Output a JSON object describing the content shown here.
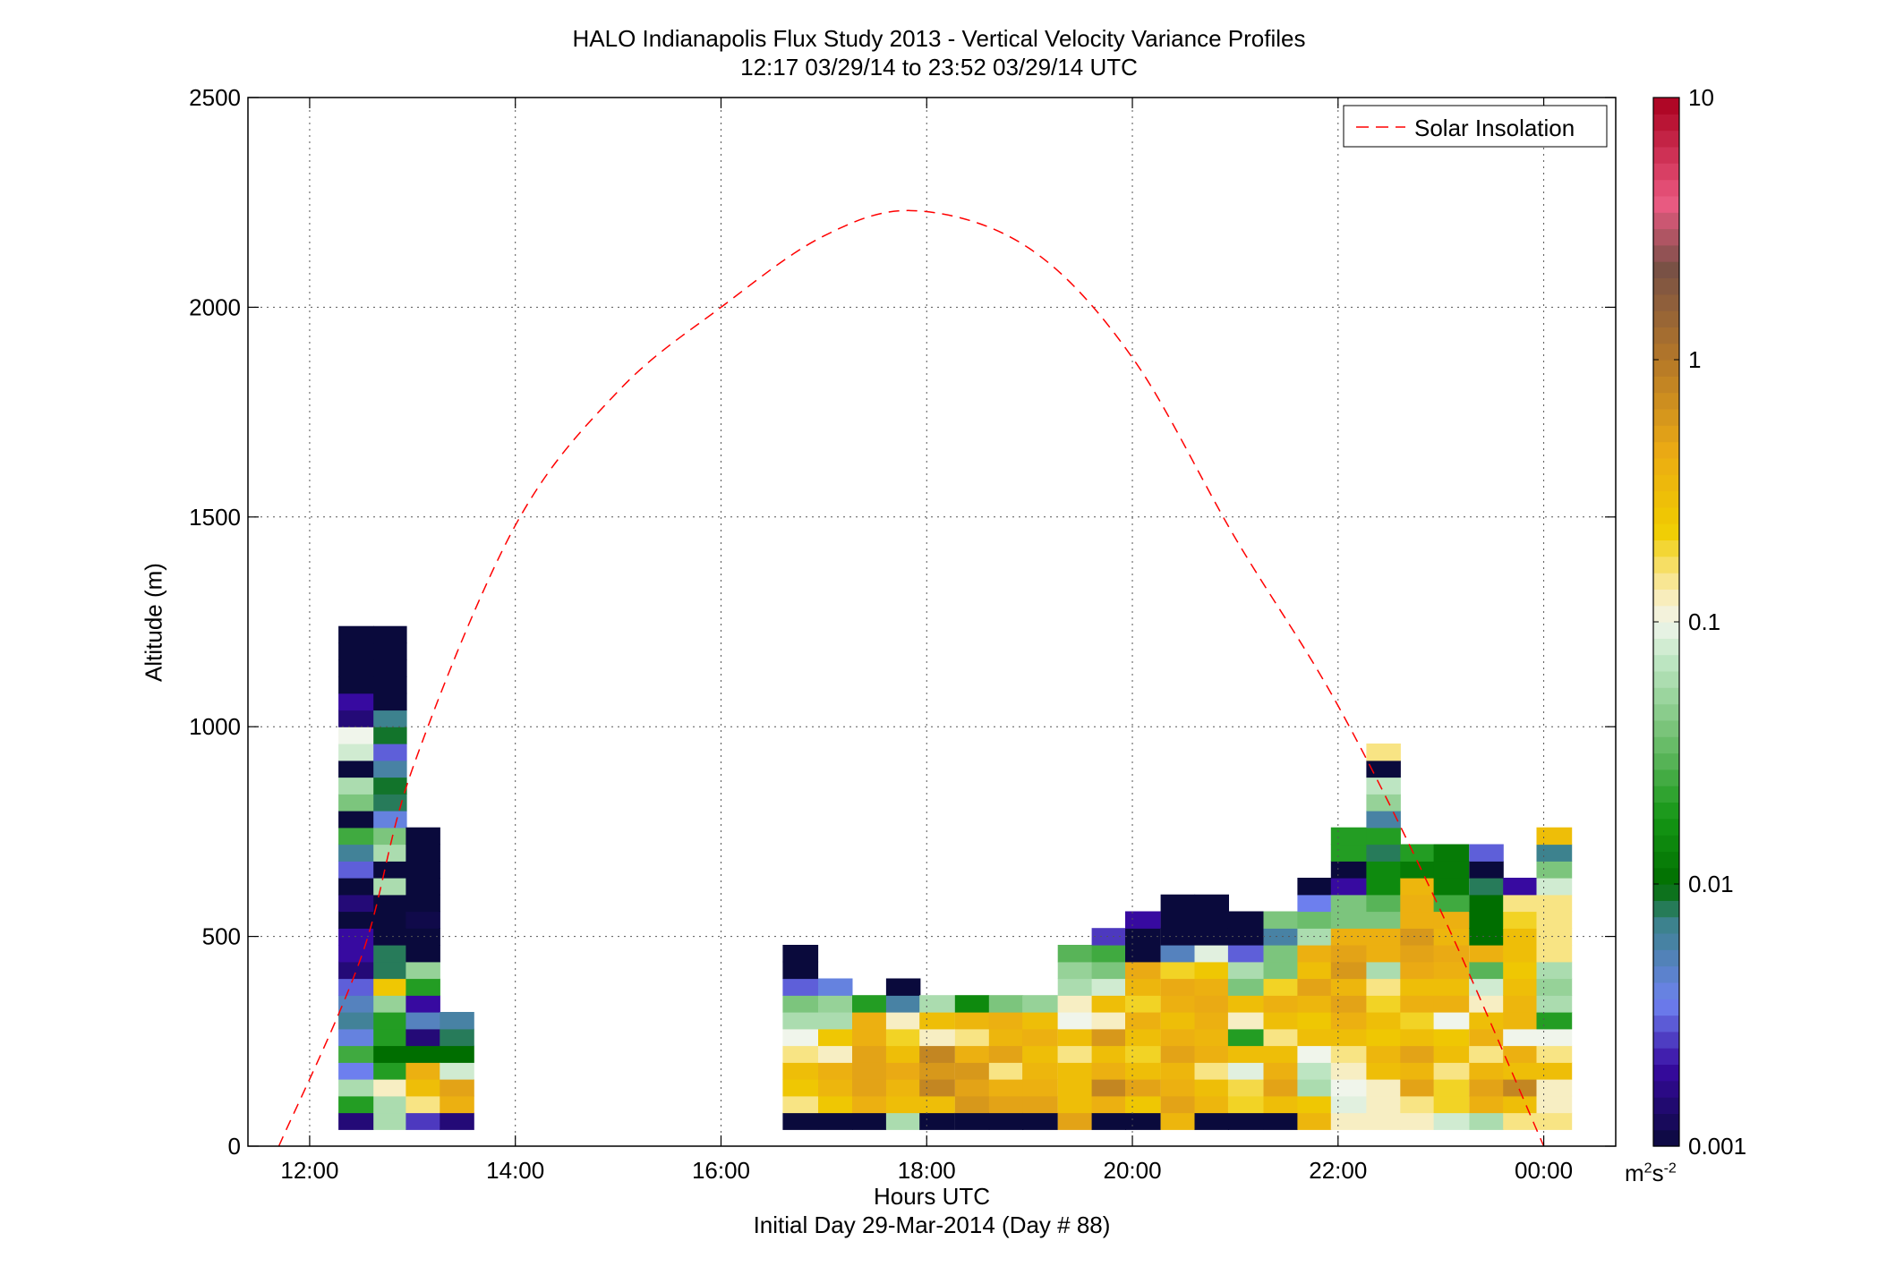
{
  "title_line1": "HALO Indianapolis Flux Study 2013 - Vertical Velocity Variance Profiles",
  "title_line2": "12:17 03/29/14 to 23:52 03/29/14  UTC",
  "xlabel": "Hours UTC",
  "xlabel2": "Initial Day 29-Mar-2014 (Day # 88)",
  "ylabel": "Altitude (m)",
  "colorbar_unit_base": "m",
  "colorbar_unit_mid": "2",
  "colorbar_unit_s": "s",
  "colorbar_unit_exp": "-2",
  "chart_data": {
    "type": "heatmap",
    "title": "HALO Indianapolis Flux Study 2013 - Vertical Velocity Variance Profiles",
    "subtitle": "12:17 03/29/14 to 23:52 03/29/14  UTC",
    "xlabel": "Hours UTC",
    "ylabel": "Altitude (m)",
    "xlim": [
      11.4,
      24.7
    ],
    "ylim": [
      0,
      2500
    ],
    "x_ticks": [
      {
        "value": 12,
        "label": "12:00"
      },
      {
        "value": 14,
        "label": "14:00"
      },
      {
        "value": 16,
        "label": "16:00"
      },
      {
        "value": 18,
        "label": "18:00"
      },
      {
        "value": 20,
        "label": "20:00"
      },
      {
        "value": 22,
        "label": "22:00"
      },
      {
        "value": 24,
        "label": "00:00"
      }
    ],
    "y_ticks": [
      0,
      500,
      1000,
      1500,
      2000,
      2500
    ],
    "grid": true,
    "legend_position": "top-right",
    "colorbar": {
      "scale": "log",
      "range": [
        0.001,
        10
      ],
      "tick_values": [
        0.001,
        0.01,
        0.1,
        1,
        10
      ],
      "tick_labels": [
        "0.001",
        "0.01",
        "0.1",
        "1",
        "10"
      ],
      "unit": "m^2 s^-2"
    },
    "line_series": {
      "name": "Solar Insolation",
      "color": "#ff0000",
      "style": "dashed",
      "x": [
        11.7,
        12.5,
        13.0,
        14.0,
        15.0,
        16.0,
        17.0,
        17.9,
        19.0,
        20.0,
        21.0,
        22.0,
        23.0,
        24.0
      ],
      "y": [
        0,
        450,
        900,
        1480,
        1800,
        2000,
        2170,
        2230,
        2140,
        1880,
        1450,
        1050,
        560,
        0
      ]
    },
    "cell_dz": 40,
    "cells": [
      {
        "x": 12.45,
        "w": 0.34,
        "z": [
          0.0015,
          0.02,
          0.06,
          0.0035,
          0.025,
          0.004,
          0.0065,
          0.005,
          0.003,
          0.0015,
          0.002,
          0.002,
          0.001,
          0.0015,
          0.001,
          0.003,
          0.0065,
          0.025,
          0.001,
          0.04,
          0.06,
          0.001,
          0.08,
          0.1,
          0.0015,
          0.002,
          0.001,
          0.001,
          0.001,
          0.001
        ]
      },
      {
        "x": 12.78,
        "w": 0.32,
        "z": [
          0.06,
          0.06,
          0.12,
          0.02,
          0.01,
          0.02,
          0.02,
          0.05,
          0.25,
          0.008,
          0.008,
          0.001,
          0.001,
          0.001,
          0.06,
          0.001,
          0.06,
          0.04,
          0.004,
          0.008,
          0.009,
          0.006,
          0.003,
          0.009,
          0.007,
          0.001,
          0.001,
          0.001,
          0.001,
          0.001
        ]
      },
      {
        "x": 13.1,
        "w": 0.33,
        "z": [
          0.0025,
          0.15,
          0.3,
          0.4,
          0.01,
          0.0015,
          0.005,
          0.002,
          0.02,
          0.05,
          0.001,
          0.001,
          0.0011,
          0.001,
          0.001,
          0.001,
          0.001,
          0.001
        ]
      },
      {
        "x": 13.43,
        "w": 0.33,
        "z": [
          0.0015,
          0.4,
          0.5,
          0.08,
          0.01,
          0.008,
          0.006
        ]
      },
      {
        "x": 16.77,
        "w": 0.34,
        "z": [
          0.001,
          0.15,
          0.25,
          0.3,
          0.15,
          0.1,
          0.06,
          0.04,
          0.003,
          0.001,
          0.001
        ]
      },
      {
        "x": 17.11,
        "w": 0.33,
        "z": [
          0.001,
          0.25,
          0.35,
          0.4,
          0.12,
          0.25,
          0.06,
          0.05,
          0.004
        ]
      },
      {
        "x": 17.44,
        "w": 0.33,
        "z": [
          0.001,
          0.4,
          0.5,
          0.5,
          0.5,
          0.4,
          0.4,
          0.02
        ]
      },
      {
        "x": 17.77,
        "w": 0.33,
        "z": [
          0.06,
          0.3,
          0.35,
          0.45,
          0.3,
          0.2,
          0.12,
          0.006,
          0.001
        ]
      },
      {
        "x": 18.1,
        "w": 0.34,
        "z": [
          0.001,
          0.3,
          0.8,
          0.6,
          0.8,
          0.12,
          0.3,
          0.06
        ]
      },
      {
        "x": 18.44,
        "w": 0.33,
        "z": [
          0.001,
          0.6,
          0.5,
          0.6,
          0.4,
          0.15,
          0.35,
          0.015
        ]
      },
      {
        "x": 18.77,
        "w": 0.33,
        "z": [
          0.001,
          0.5,
          0.4,
          0.15,
          0.5,
          0.35,
          0.4,
          0.04
        ]
      },
      {
        "x": 19.1,
        "w": 0.34,
        "z": [
          0.001,
          0.5,
          0.4,
          0.35,
          0.3,
          0.4,
          0.3,
          0.05
        ]
      },
      {
        "x": 19.44,
        "w": 0.33,
        "z": [
          0.5,
          0.3,
          0.3,
          0.3,
          0.15,
          0.3,
          0.1,
          0.12,
          0.06,
          0.05,
          0.03
        ]
      },
      {
        "x": 19.77,
        "w": 0.33,
        "z": [
          0.001,
          0.4,
          0.8,
          0.4,
          0.3,
          0.6,
          0.12,
          0.3,
          0.08,
          0.04,
          0.025,
          0.0025
        ]
      },
      {
        "x": 20.1,
        "w": 0.34,
        "z": [
          0.001,
          0.25,
          0.5,
          0.3,
          0.2,
          0.3,
          0.4,
          0.2,
          0.35,
          0.45,
          0.001,
          0.001,
          0.002
        ]
      },
      {
        "x": 20.44,
        "w": 0.33,
        "z": [
          0.35,
          0.5,
          0.4,
          0.35,
          0.5,
          0.4,
          0.3,
          0.4,
          0.45,
          0.2,
          0.005,
          0.001,
          0.001,
          0.001
        ]
      },
      {
        "x": 20.77,
        "w": 0.33,
        "z": [
          0.001,
          0.35,
          0.3,
          0.15,
          0.4,
          0.35,
          0.4,
          0.45,
          0.4,
          0.25,
          0.09,
          0.001,
          0.001,
          0.001
        ]
      },
      {
        "x": 21.1,
        "w": 0.34,
        "z": [
          0.001,
          0.2,
          0.18,
          0.09,
          0.3,
          0.02,
          0.12,
          0.3,
          0.04,
          0.06,
          0.003,
          0.001,
          0.001
        ]
      },
      {
        "x": 21.44,
        "w": 0.33,
        "z": [
          0.001,
          0.3,
          0.5,
          0.4,
          0.3,
          0.15,
          0.3,
          0.4,
          0.2,
          0.04,
          0.04,
          0.006,
          0.04
        ]
      },
      {
        "x": 21.77,
        "w": 0.33,
        "z": [
          0.35,
          0.25,
          0.06,
          0.07,
          0.1,
          0.3,
          0.25,
          0.35,
          0.5,
          0.3,
          0.4,
          0.06,
          0.035,
          0.0035,
          0.001
        ]
      },
      {
        "x": 22.1,
        "w": 0.34,
        "z": [
          0.12,
          0.09,
          0.1,
          0.12,
          0.15,
          0.3,
          0.4,
          0.5,
          0.35,
          0.6,
          0.5,
          0.4,
          0.04,
          0.04,
          0.002,
          0.001,
          0.02,
          0.02
        ]
      },
      {
        "x": 22.44,
        "w": 0.33,
        "z": [
          0.12,
          0.12,
          0.12,
          0.3,
          0.35,
          0.25,
          0.3,
          0.2,
          0.15,
          0.06,
          0.4,
          0.4,
          0.04,
          0.03,
          0.015,
          0.015,
          0.008,
          0.02,
          0.006,
          0.05,
          0.07,
          0.001,
          0.15
        ]
      },
      {
        "x": 22.77,
        "w": 0.33,
        "z": [
          0.12,
          0.15,
          0.5,
          0.35,
          0.5,
          0.3,
          0.2,
          0.4,
          0.3,
          0.45,
          0.5,
          0.6,
          0.4,
          0.4,
          0.35,
          0.012,
          0.02
        ]
      },
      {
        "x": 23.1,
        "w": 0.34,
        "z": [
          0.08,
          0.2,
          0.2,
          0.15,
          0.3,
          0.25,
          0.1,
          0.4,
          0.3,
          0.4,
          0.45,
          0.35,
          0.4,
          0.025,
          0.012,
          0.012,
          0.012
        ]
      },
      {
        "x": 23.44,
        "w": 0.33,
        "z": [
          0.06,
          0.4,
          0.5,
          0.35,
          0.15,
          0.4,
          0.3,
          0.12,
          0.08,
          0.03,
          0.4,
          0.01,
          0.01,
          0.01,
          0.008,
          0.001,
          0.003
        ]
      },
      {
        "x": 23.77,
        "w": 0.33,
        "z": [
          0.15,
          0.3,
          0.8,
          0.3,
          0.4,
          0.1,
          0.35,
          0.35,
          0.3,
          0.25,
          0.3,
          0.3,
          0.2,
          0.15,
          0.002
        ]
      },
      {
        "x": 24.1,
        "w": 0.34,
        "z": [
          0.15,
          0.12,
          0.12,
          0.3,
          0.15,
          0.1,
          0.02,
          0.06,
          0.05,
          0.06,
          0.15,
          0.15,
          0.15,
          0.15,
          0.08,
          0.04,
          0.007,
          0.3
        ]
      }
    ]
  },
  "icons": {
    "legend_line": "dashed-line-icon"
  }
}
